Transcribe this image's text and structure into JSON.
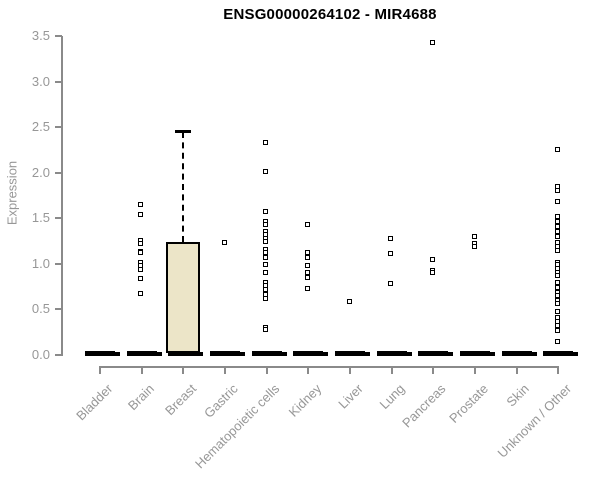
{
  "chart_data": {
    "type": "boxplot",
    "title": "ENSG00000264102 - MIR4688",
    "ylabel": "Expression",
    "xlabel": "",
    "ylim": [
      0,
      3.5
    ],
    "ytick_values": [
      0.0,
      0.5,
      1.0,
      1.5,
      2.0,
      2.5,
      3.0,
      3.5
    ],
    "ytick_labels": [
      "0.0",
      "0.5",
      "1.0",
      "1.5",
      "2.0",
      "2.5",
      "3.0",
      "3.5"
    ],
    "grid": "off",
    "legend": "none",
    "marker": "open-square",
    "categories": [
      "Bladder",
      "Brain",
      "Breast",
      "Gastric",
      "Hematopoietic cells",
      "Kidney",
      "Liver",
      "Lung",
      "Pancreas",
      "Prostate",
      "Skin",
      "Unknown / Other"
    ],
    "series": [
      {
        "name": "Bladder",
        "zero_bar": true,
        "points": [],
        "box": null
      },
      {
        "name": "Brain",
        "zero_bar": true,
        "points": [
          1.65,
          1.54,
          1.26,
          1.22,
          1.14,
          1.12,
          1.02,
          0.98,
          0.94,
          0.84,
          0.68
        ],
        "box": null
      },
      {
        "name": "Breast",
        "zero_bar": true,
        "points": [],
        "box": {
          "q1": 0,
          "median": 0,
          "q3": 1.24,
          "whisker_low": 0,
          "whisker_high": 2.45
        }
      },
      {
        "name": "Gastric",
        "zero_bar": true,
        "points": [
          1.23
        ],
        "box": null
      },
      {
        "name": "Hematopoietic cells",
        "zero_bar": true,
        "points": [
          2.33,
          2.01,
          1.57,
          1.47,
          1.43,
          1.35,
          1.32,
          1.28,
          1.24,
          1.16,
          1.12,
          1.07,
          0.99,
          0.91,
          0.79,
          0.76,
          0.72,
          0.66,
          0.62,
          0.3,
          0.28
        ],
        "box": null
      },
      {
        "name": "Kidney",
        "zero_bar": true,
        "points": [
          1.43,
          1.12,
          1.07,
          0.98,
          0.91,
          0.85,
          0.73
        ],
        "box": null
      },
      {
        "name": "Liver",
        "zero_bar": true,
        "points": [
          0.59
        ],
        "box": null
      },
      {
        "name": "Lung",
        "zero_bar": true,
        "points": [
          1.28,
          1.11,
          0.78
        ],
        "box": null
      },
      {
        "name": "Pancreas",
        "zero_bar": true,
        "points": [
          3.43,
          1.05,
          0.93,
          0.9
        ],
        "box": null
      },
      {
        "name": "Prostate",
        "zero_bar": true,
        "points": [
          1.3,
          1.22,
          1.19
        ],
        "box": null
      },
      {
        "name": "Skin",
        "zero_bar": true,
        "points": [],
        "box": null
      },
      {
        "name": "Unknown / Other",
        "zero_bar": true,
        "points": [
          2.25,
          1.85,
          1.8,
          1.68,
          1.52,
          1.47,
          1.41,
          1.35,
          1.3,
          1.23,
          1.19,
          1.15,
          1.02,
          0.99,
          0.95,
          0.91,
          0.87,
          0.79,
          0.74,
          0.69,
          0.65,
          0.6,
          0.57,
          0.48,
          0.41,
          0.37,
          0.32,
          0.27,
          0.15
        ],
        "box": null
      }
    ],
    "colors": {
      "box_fill": "#ece5c8",
      "box_border": "#000000",
      "point": "#000000",
      "zero_bar": "#000000",
      "axis": "#8a8a8a",
      "tick_label": "#979797",
      "title": "#000000",
      "background": "#ffffff"
    }
  }
}
